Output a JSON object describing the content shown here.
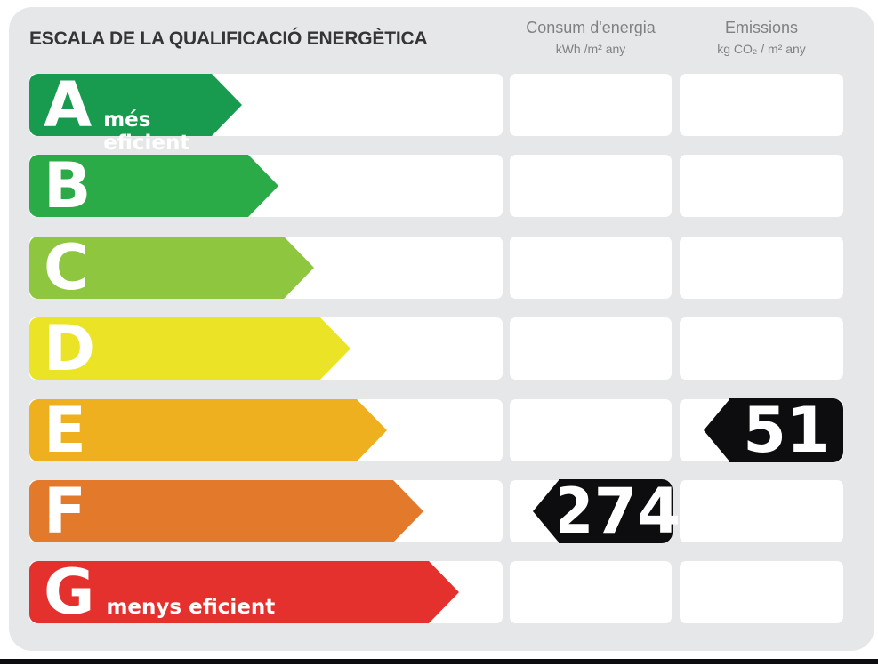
{
  "page": {
    "background": "#ffffff",
    "panel_color": "#e6e7e8",
    "cell_color": "#ffffff",
    "bottom_bar_color": "#0d0d0f",
    "value_arrow_color": "#0d0d0f"
  },
  "header": {
    "title": "ESCALA DE LA QUALIFICACIÓ ENERGÈTICA",
    "consum_label": "Consum d'energia",
    "consum_unit": "kWh /m²  any",
    "emissions_label": "Emissions",
    "emissions_unit": "kg CO₂  / m²  any"
  },
  "scale": {
    "rows": [
      {
        "letter": "A",
        "qualifier": "més eficient",
        "color": "#189a4f"
      },
      {
        "letter": "B",
        "qualifier": "",
        "color": "#2bab47"
      },
      {
        "letter": "C",
        "qualifier": "",
        "color": "#8ec63f"
      },
      {
        "letter": "D",
        "qualifier": "",
        "color": "#ebe426"
      },
      {
        "letter": "E",
        "qualifier": "",
        "color": "#eeb01f"
      },
      {
        "letter": "F",
        "qualifier": "",
        "color": "#e2792b"
      },
      {
        "letter": "G",
        "qualifier": "menys eficient",
        "color": "#e5312d"
      }
    ]
  },
  "values": {
    "consum": {
      "value": "274",
      "row_index": 5,
      "rating": "F"
    },
    "emissions": {
      "value": "51",
      "row_index": 4,
      "rating": "E"
    }
  },
  "chart_data": {
    "type": "bar",
    "title": "ESCALA DE LA QUALIFICACIÓ ENERGÈTICA",
    "orientation": "horizontal",
    "categories": [
      "A",
      "B",
      "C",
      "D",
      "E",
      "F",
      "G"
    ],
    "category_qualifiers": {
      "A": "més eficient",
      "G": "menys eficient"
    },
    "bar_colors": [
      "#189a4f",
      "#2bab47",
      "#8ec63f",
      "#ebe426",
      "#eeb01f",
      "#e2792b",
      "#e5312d"
    ],
    "bar_relative_lengths": [
      1,
      2,
      3,
      4,
      5,
      6,
      7
    ],
    "columns": [
      {
        "label": "Consum d'energia",
        "unit": "kWh /m² any"
      },
      {
        "label": "Emissions",
        "unit": "kg CO₂ / m² any"
      }
    ],
    "annotations": [
      {
        "column": "Consum d'energia",
        "unit": "kWh /m² any",
        "value": 274,
        "rating": "F"
      },
      {
        "column": "Emissions",
        "unit": "kg CO₂ / m² any",
        "value": 51,
        "rating": "E"
      }
    ],
    "legend_position": "none",
    "grid": false
  }
}
